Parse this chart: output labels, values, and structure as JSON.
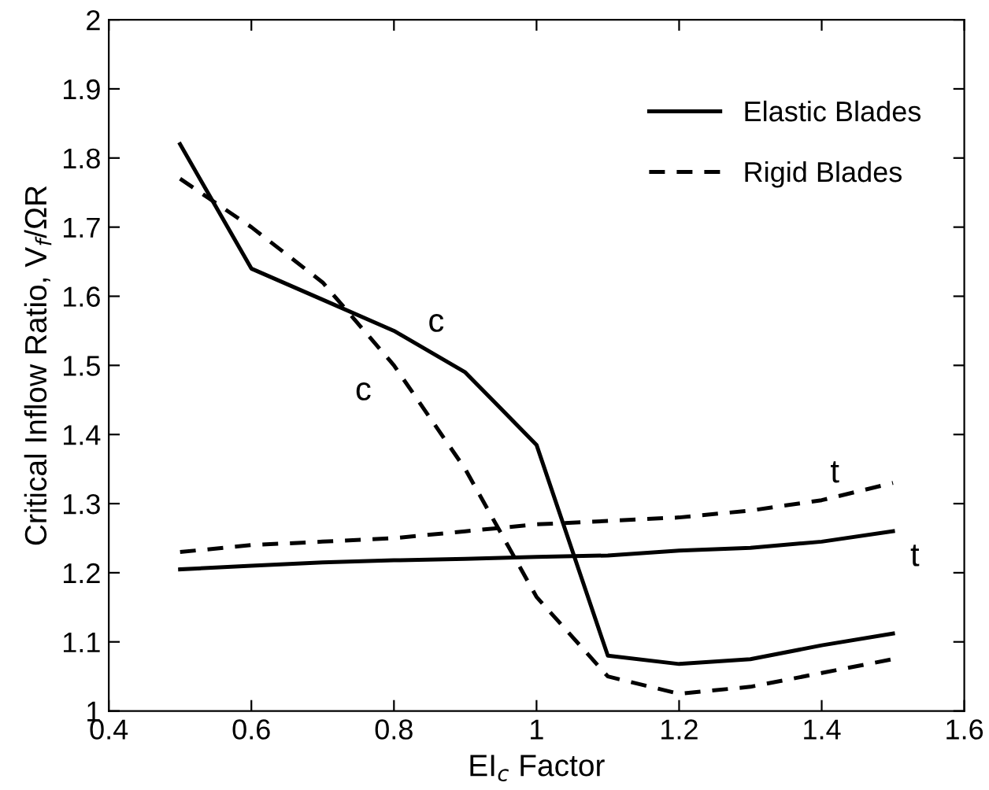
{
  "chart_data": {
    "type": "line",
    "xlabel": "EI$_{c}$ Factor",
    "ylabel": "Critical Inflow Ratio, V$_{f}$/ΩR",
    "x": [
      0.5,
      0.6,
      0.7,
      0.8,
      0.9,
      1,
      1.1,
      1.2,
      1.3,
      1.4,
      1.5
    ],
    "series": [
      {
        "name": "Elastic Blades",
        "color": "#000000",
        "line_style": "solid",
        "values": [
          1.82,
          1.64,
          1.595,
          1.55,
          1.49,
          1.385,
          1.08,
          1.068,
          1.075,
          1.095,
          1.112
        ]
      },
      {
        "name": "Rigid Blades",
        "color": "#000000",
        "line_style": "dashed",
        "values": [
          1.77,
          1.7,
          1.62,
          1.5,
          1.35,
          1.165,
          1.05,
          1.025,
          1.035,
          1.055,
          1.075
        ]
      },
      {
        "color": "#000000",
        "line_style": "solid",
        "values": [
          1.205,
          1.21,
          1.215,
          1.218,
          1.22,
          1.223,
          1.225,
          1.232,
          1.236,
          1.245,
          1.26
        ]
      },
      {
        "color": "#000000",
        "line_style": "dashed",
        "values": [
          1.23,
          1.24,
          1.245,
          1.25,
          1.26,
          1.27,
          1.275,
          1.28,
          1.29,
          1.305,
          1.33
        ]
      }
    ],
    "annotations": [
      {
        "text": "c",
        "x": 0.85,
        "y": 1.52
      },
      {
        "text": "c",
        "x": 0.8,
        "y": 1.5
      },
      {
        "text": "t",
        "x": 1.4,
        "y": 1.305
      },
      {
        "text": "t",
        "x": 1.5,
        "y": 1.26
      }
    ],
    "xlim": [
      0.4,
      1.6
    ],
    "xticks": [
      0.4,
      0.6,
      0.8,
      1,
      1.2,
      1.4,
      1.6
    ],
    "ylim": [
      1,
      2
    ],
    "yticks": [
      1,
      1.1,
      1.2,
      1.3,
      1.4,
      1.5,
      1.6,
      1.7,
      1.8,
      1.9,
      2
    ],
    "grid": false,
    "legend": "top right",
    "marker": "none"
  }
}
